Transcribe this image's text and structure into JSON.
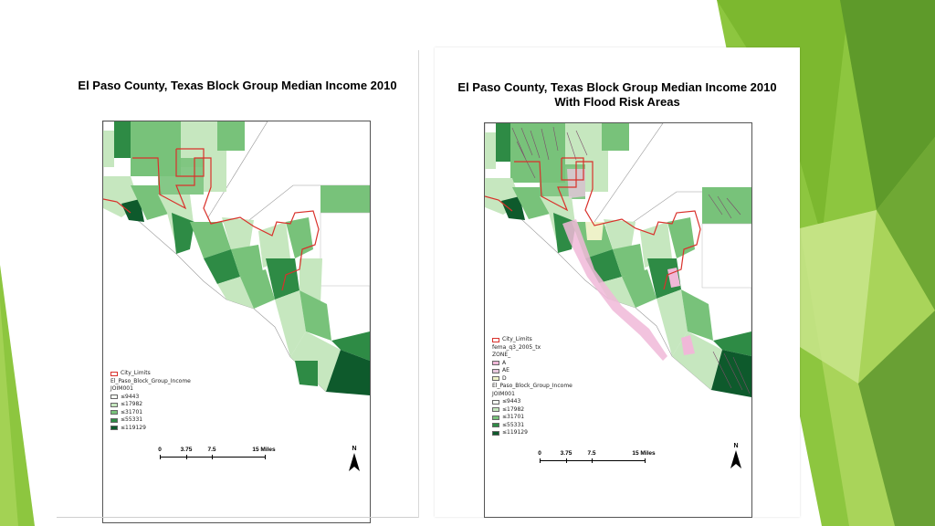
{
  "slide": {
    "accent_colors": [
      "#7cb82f",
      "#8dc63f",
      "#5e9a2a",
      "#a9d45a",
      "#c9e58c"
    ]
  },
  "left_map": {
    "title": "El Paso County, Texas Block Group Median Income 2010",
    "legend": {
      "city_limits_label": "City_Limits",
      "layer_label": "El_Paso_Block_Group_Income",
      "field_label": "JOIM001",
      "classes": [
        {
          "label": "≤9443",
          "color": "#f5faf3"
        },
        {
          "label": "≤17982",
          "color": "#c6e7bf"
        },
        {
          "label": "≤31701",
          "color": "#78c27a"
        },
        {
          "label": "≤55331",
          "color": "#2e8b45"
        },
        {
          "label": "≤119129",
          "color": "#0e5a2c"
        }
      ]
    },
    "scale": {
      "labels": [
        "0",
        "3.75",
        "7.5",
        "15 Miles"
      ],
      "values": [
        0,
        3.75,
        7.5,
        15
      ]
    },
    "north_label": "N"
  },
  "right_map": {
    "title": "El Paso County, Texas Block Group Median Income 2010",
    "subtitle": "With Flood Risk Areas",
    "legend": {
      "city_limits_label": "City_Limits",
      "flood_layer_label": "fema_q3_2005_tx",
      "zone_label": "ZONE_",
      "zones": [
        {
          "label": "A",
          "color": "#f0b8d8"
        },
        {
          "label": "AE",
          "color": "#e6c7dc"
        },
        {
          "label": "D",
          "color": "#eef2c9"
        }
      ],
      "layer_label": "El_Paso_Block_Group_Income",
      "field_label": "JOIM001",
      "classes": [
        {
          "label": "≤9443",
          "color": "#f5faf3"
        },
        {
          "label": "≤17982",
          "color": "#c6e7bf"
        },
        {
          "label": "≤31701",
          "color": "#78c27a"
        },
        {
          "label": "≤55331",
          "color": "#2e8b45"
        },
        {
          "label": "≤119129",
          "color": "#0e5a2c"
        }
      ]
    },
    "scale": {
      "labels": [
        "0",
        "3.75",
        "7.5",
        "15 Miles"
      ],
      "values": [
        0,
        3.75,
        7.5,
        15
      ]
    },
    "north_label": "N"
  }
}
